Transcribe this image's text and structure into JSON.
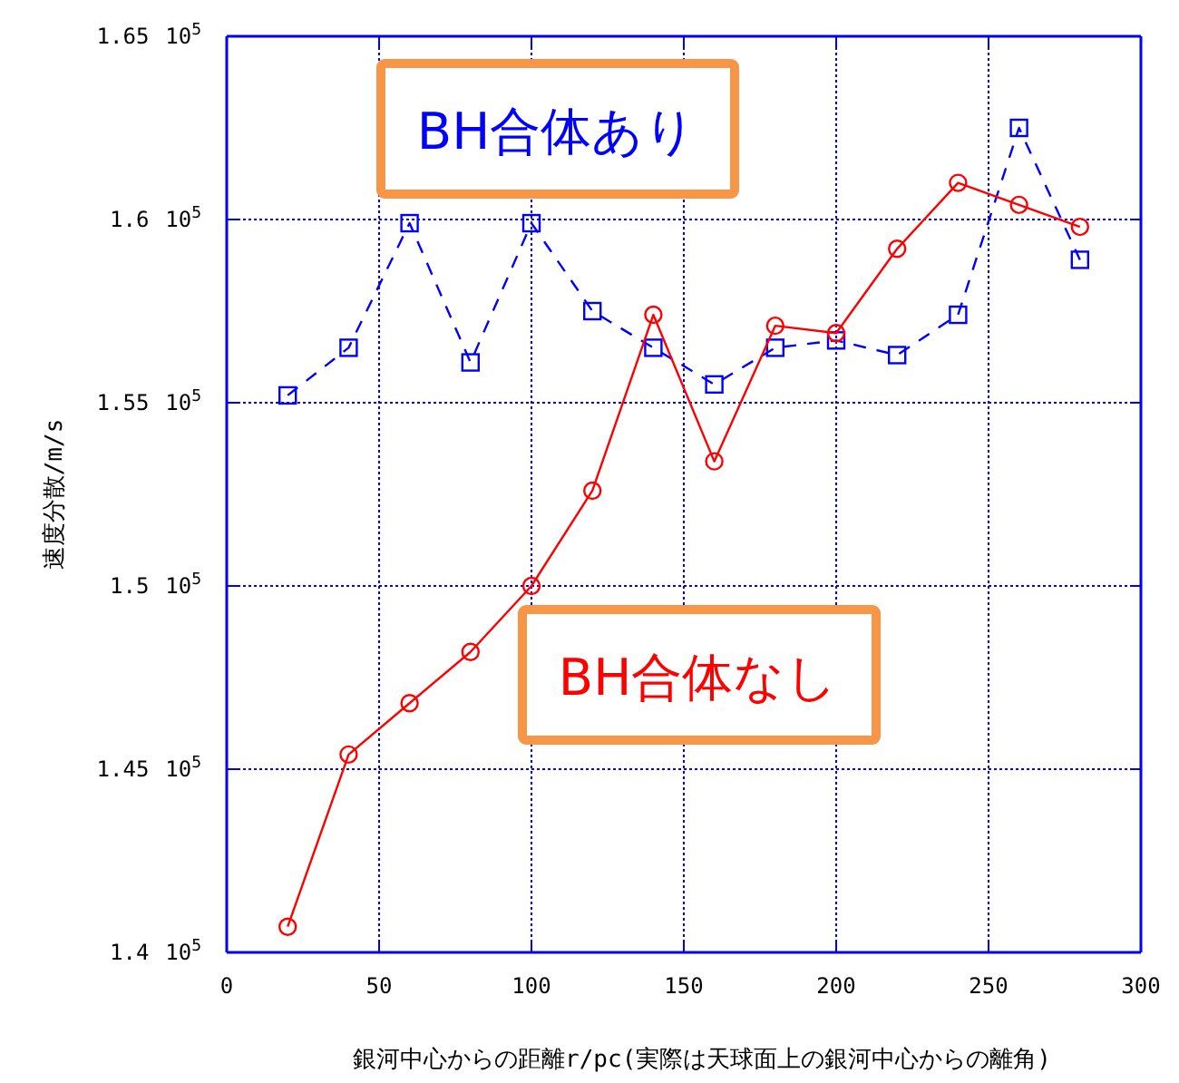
{
  "chart_data": {
    "type": "line",
    "xlabel": "銀河中心からの距離r/pc(実際は天球面上の銀河中心からの離角)",
    "ylabel": "速度分散/m/s",
    "x": [
      20,
      40,
      60,
      80,
      100,
      120,
      140,
      160,
      180,
      200,
      220,
      240,
      260,
      280
    ],
    "xlim": [
      0,
      300
    ],
    "xticks": [
      0,
      50,
      100,
      150,
      200,
      250,
      300
    ],
    "ylim": [
      1.4,
      1.65
    ],
    "yticks": [
      1.4,
      1.45,
      1.5,
      1.55,
      1.6,
      1.65
    ],
    "annotations": [
      "10$^{5}$"
    ],
    "grid": true,
    "legend": "top",
    "series": [
      {
        "name": "BH合体あり",
        "color": "#0000ff",
        "marker": "square",
        "line_style": "dashed",
        "values": [
          1.552,
          1.565,
          1.599,
          1.561,
          1.599,
          1.575,
          1.565,
          1.555,
          1.565,
          1.567,
          1.563,
          1.574,
          1.625,
          1.589
        ]
      },
      {
        "name": "BH合体なし",
        "color": "#ff0000",
        "marker": "circle",
        "line_style": "solid",
        "values": [
          1.407,
          1.454,
          1.468,
          1.482,
          1.5,
          1.526,
          1.574,
          1.534,
          1.571,
          1.569,
          1.592,
          1.61,
          1.604,
          1.598
        ]
      }
    ]
  }
}
